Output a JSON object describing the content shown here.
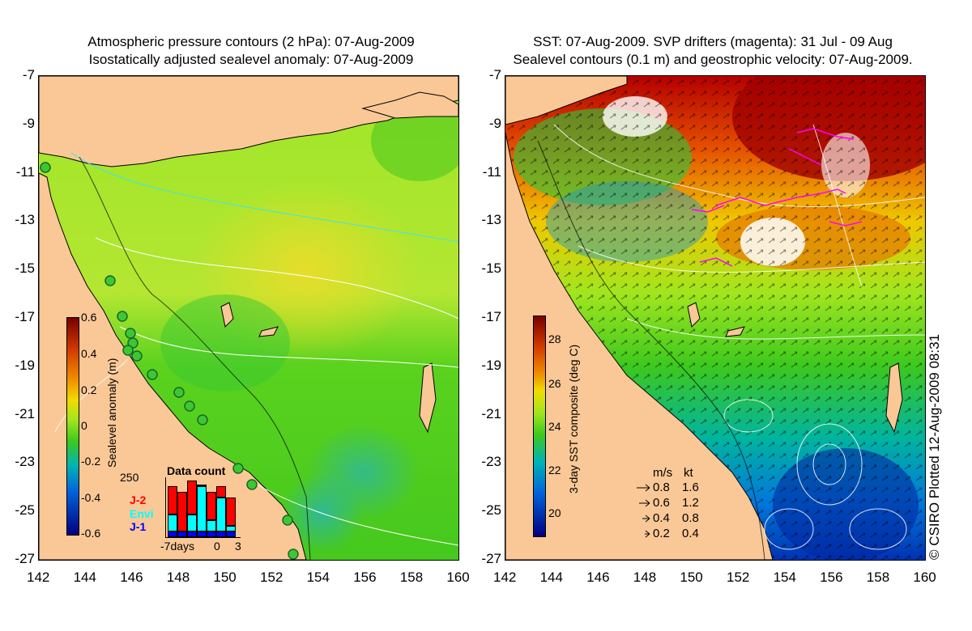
{
  "left": {
    "title_line1": "Atmospheric pressure contours (2 hPa): 07-Aug-2009",
    "title_line2": "Isostatically adjusted sealevel anomaly: 07-Aug-2009",
    "colorbar_label": "Sealevel anomaly (m)",
    "colorbar_ticks": [
      "0.6",
      "0.4",
      "0.2",
      "0",
      "-0.2",
      "-0.4",
      "-0.6"
    ],
    "data_count": {
      "title": "Data count",
      "max_label": "250",
      "xticks": [
        "-7days",
        "0",
        "3"
      ],
      "legend": [
        {
          "label": "J-2",
          "color": "#ff0000"
        },
        {
          "label": "Envi",
          "color": "#00ffff"
        },
        {
          "label": "J-1",
          "color": "#0000ff"
        }
      ],
      "bars": [
        {
          "j1": 0.1,
          "envi": 0.4,
          "j2": 0.9
        },
        {
          "j1": 0.1,
          "envi": 0.1,
          "j2": 0.8
        },
        {
          "j1": 0.1,
          "envi": 0.4,
          "j2": 1.0
        },
        {
          "j1": 0.1,
          "envi": 0.9,
          "j2": 0.9
        },
        {
          "j1": 0.1,
          "envi": 0.3,
          "j2": 0.8
        },
        {
          "j1": 0.1,
          "envi": 0.7,
          "j2": 0.9
        },
        {
          "j1": 0.1,
          "envi": 0.2,
          "j2": 0.7
        }
      ]
    }
  },
  "right": {
    "title_line1": "SST: 07-Aug-2009. SVP drifters (magenta): 31 Jul - 09 Aug",
    "title_line2": "Sealevel contours (0.1 m) and geostrophic velocity: 07-Aug-2009.",
    "colorbar_label": "3-day SST composite (deg C)",
    "colorbar_ticks": [
      "28",
      "26",
      "24",
      "22",
      "20"
    ],
    "velocity_legend": {
      "header_ms": "m/s",
      "header_kt": "kt",
      "rows": [
        {
          "ms": "0.8",
          "kt": "1.6"
        },
        {
          "ms": "0.6",
          "kt": "1.2"
        },
        {
          "ms": "0.4",
          "kt": "0.8"
        },
        {
          "ms": "0.2",
          "kt": "0.4"
        }
      ]
    }
  },
  "y_ticks": [
    "-7",
    "-9",
    "-11",
    "-13",
    "-15",
    "-17",
    "-19",
    "-21",
    "-23",
    "-25",
    "-27"
  ],
  "x_ticks": [
    "142",
    "144",
    "146",
    "148",
    "150",
    "152",
    "154",
    "156",
    "158",
    "160"
  ],
  "copyright": "© CSIRO Plotted 12-Aug-2009 08:31",
  "colors": {
    "land": "#fac896",
    "sla_high": "#d2d200",
    "sla_mid": "#5ad21e",
    "sla_low": "#00b4c8",
    "sst_warm": "#b40000",
    "sst_mid": "#3cc81e",
    "sst_cool": "#0050c8",
    "contour": "#ffffff",
    "drifter": "#ff00ff"
  }
}
